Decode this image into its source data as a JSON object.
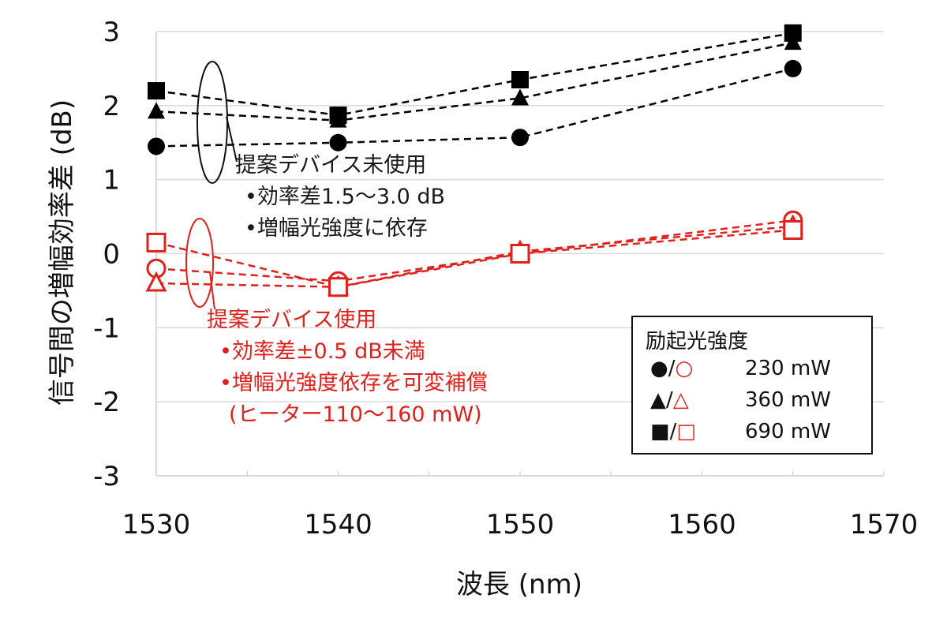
{
  "chart_data": {
    "type": "line",
    "xlabel": "波長 (nm)",
    "ylabel": "信号間の増幅効率差 (dB)",
    "xlim": [
      1530,
      1570
    ],
    "ylim": [
      -3,
      3
    ],
    "xticks": [
      "1530",
      "1540",
      "1550",
      "1560",
      "1570"
    ],
    "yticks": [
      "-3",
      "-2",
      "-1",
      "0",
      "1",
      "2",
      "3"
    ],
    "grid": "horizontal",
    "x": [
      1530,
      1540,
      1550,
      1565
    ],
    "series": [
      {
        "marker": "circle-filled",
        "color": "#000000",
        "values": [
          1.45,
          1.5,
          1.57,
          2.5
        ]
      },
      {
        "marker": "triangle-filled",
        "color": "#000000",
        "values": [
          1.92,
          1.8,
          2.1,
          2.85
        ]
      },
      {
        "marker": "square-filled",
        "color": "#000000",
        "values": [
          2.2,
          1.87,
          2.35,
          2.98
        ]
      },
      {
        "marker": "circle-open",
        "color": "#e0201b",
        "values": [
          -0.2,
          -0.37,
          0.0,
          0.45
        ]
      },
      {
        "marker": "triangle-open",
        "color": "#e0201b",
        "values": [
          -0.4,
          -0.45,
          0.03,
          0.37
        ]
      },
      {
        "marker": "square-open",
        "color": "#e0201b",
        "values": [
          0.15,
          -0.45,
          0.0,
          0.32
        ]
      }
    ],
    "legend": {
      "title": "励起光強度",
      "position": "bottom-right",
      "entries": [
        {
          "symbols": "●/○",
          "label": "230 mW"
        },
        {
          "symbols": "▲/△",
          "label": "360 mW"
        },
        {
          "symbols": "■/□",
          "label": "690 mW"
        }
      ]
    },
    "annotations": {
      "without_device": {
        "title": "提案デバイス未使用",
        "line1": "•効率差1.5〜3.0 dB",
        "line2": "•増幅光強度に依存",
        "color": "#1a1a1a"
      },
      "with_device": {
        "title": "提案デバイス使用",
        "line1": "•効率差±0.5 dB未満",
        "line2": "•増幅光強度依存を可変補償",
        "line3": "(ヒーター110〜160 mW)",
        "color": "#e0201b"
      }
    }
  }
}
